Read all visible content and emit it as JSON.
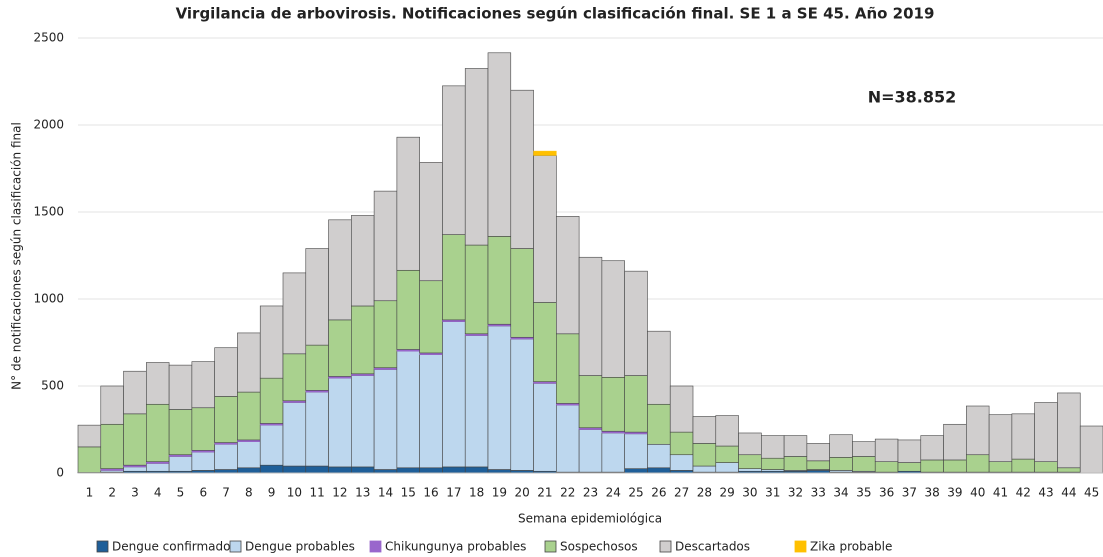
{
  "chart_data": {
    "type": "stacked_bar",
    "title": "Virgilancia de arbovirosis. Notificaciones según clasificación final. SE 1 a SE 45. Año 2019",
    "x_label": "Semana  epidemiológica",
    "y_label": "N° de notificaciones según clasificación final",
    "annotation": "N=38.852",
    "categories": [
      "1",
      "2",
      "3",
      "4",
      "5",
      "6",
      "7",
      "8",
      "9",
      "10",
      "11",
      "12",
      "13",
      "14",
      "15",
      "16",
      "17",
      "18",
      "19",
      "20",
      "21",
      "22",
      "23",
      "24",
      "25",
      "26",
      "27",
      "28",
      "29",
      "30",
      "31",
      "32",
      "33",
      "34",
      "35",
      "36",
      "37",
      "38",
      "39",
      "40",
      "41",
      "42",
      "43",
      "44",
      "45"
    ],
    "ylim": [
      0,
      2500
    ],
    "yticks": [
      0,
      500,
      1000,
      1500,
      2000,
      2500
    ],
    "grid": true,
    "series": [
      {
        "name": "Dengue confirmados",
        "color": "#1f5f99",
        "values": [
          3,
          5,
          10,
          10,
          10,
          15,
          20,
          30,
          45,
          40,
          40,
          35,
          35,
          20,
          30,
          30,
          35,
          35,
          20,
          15,
          10,
          5,
          5,
          5,
          25,
          30,
          15,
          5,
          5,
          10,
          10,
          10,
          15,
          5,
          5,
          5,
          10,
          5,
          5,
          5,
          5,
          5,
          5,
          5,
          0
        ]
      },
      {
        "name": "Dengue probables",
        "color": "#bdd7ee",
        "values": [
          0,
          10,
          25,
          45,
          85,
          105,
          145,
          150,
          230,
          365,
          425,
          510,
          525,
          575,
          670,
          650,
          835,
          755,
          825,
          755,
          505,
          385,
          245,
          225,
          200,
          135,
          90,
          35,
          55,
          15,
          10,
          5,
          5,
          10,
          5,
          0,
          0,
          0,
          0,
          0,
          0,
          0,
          0,
          0,
          0
        ]
      },
      {
        "name": "Chikungunya probables",
        "color": "#9966cc",
        "values": [
          0,
          10,
          10,
          10,
          10,
          10,
          10,
          10,
          10,
          10,
          10,
          10,
          10,
          10,
          10,
          10,
          10,
          10,
          10,
          10,
          10,
          10,
          10,
          10,
          10,
          0,
          0,
          0,
          0,
          0,
          0,
          0,
          0,
          0,
          0,
          0,
          0,
          0,
          0,
          0,
          0,
          0,
          0,
          0,
          0
        ]
      },
      {
        "name": "Sospechosos",
        "color": "#a9d18e",
        "values": [
          147,
          255,
          295,
          330,
          260,
          245,
          265,
          275,
          260,
          270,
          260,
          325,
          390,
          385,
          455,
          415,
          490,
          510,
          505,
          510,
          455,
          400,
          300,
          310,
          325,
          230,
          130,
          130,
          95,
          80,
          65,
          80,
          50,
          75,
          85,
          60,
          50,
          70,
          70,
          100,
          60,
          75,
          60,
          25,
          0
        ]
      },
      {
        "name": "Descartados",
        "color": "#d0cece",
        "values": [
          125,
          220,
          245,
          240,
          255,
          265,
          280,
          340,
          415,
          465,
          555,
          575,
          520,
          630,
          765,
          680,
          855,
          1015,
          1055,
          910,
          845,
          675,
          680,
          670,
          600,
          420,
          265,
          155,
          175,
          125,
          130,
          120,
          100,
          130,
          85,
          130,
          130,
          140,
          205,
          280,
          270,
          260,
          340,
          430,
          270
        ]
      },
      {
        "name": "Zika probable",
        "color": "#ffc000",
        "values": [
          0,
          0,
          0,
          0,
          0,
          0,
          0,
          0,
          0,
          0,
          0,
          0,
          0,
          0,
          0,
          0,
          0,
          0,
          0,
          0,
          25,
          0,
          0,
          0,
          0,
          0,
          0,
          0,
          0,
          0,
          0,
          0,
          0,
          0,
          0,
          0,
          0,
          0,
          0,
          0,
          0,
          0,
          0,
          0,
          0
        ]
      }
    ]
  }
}
